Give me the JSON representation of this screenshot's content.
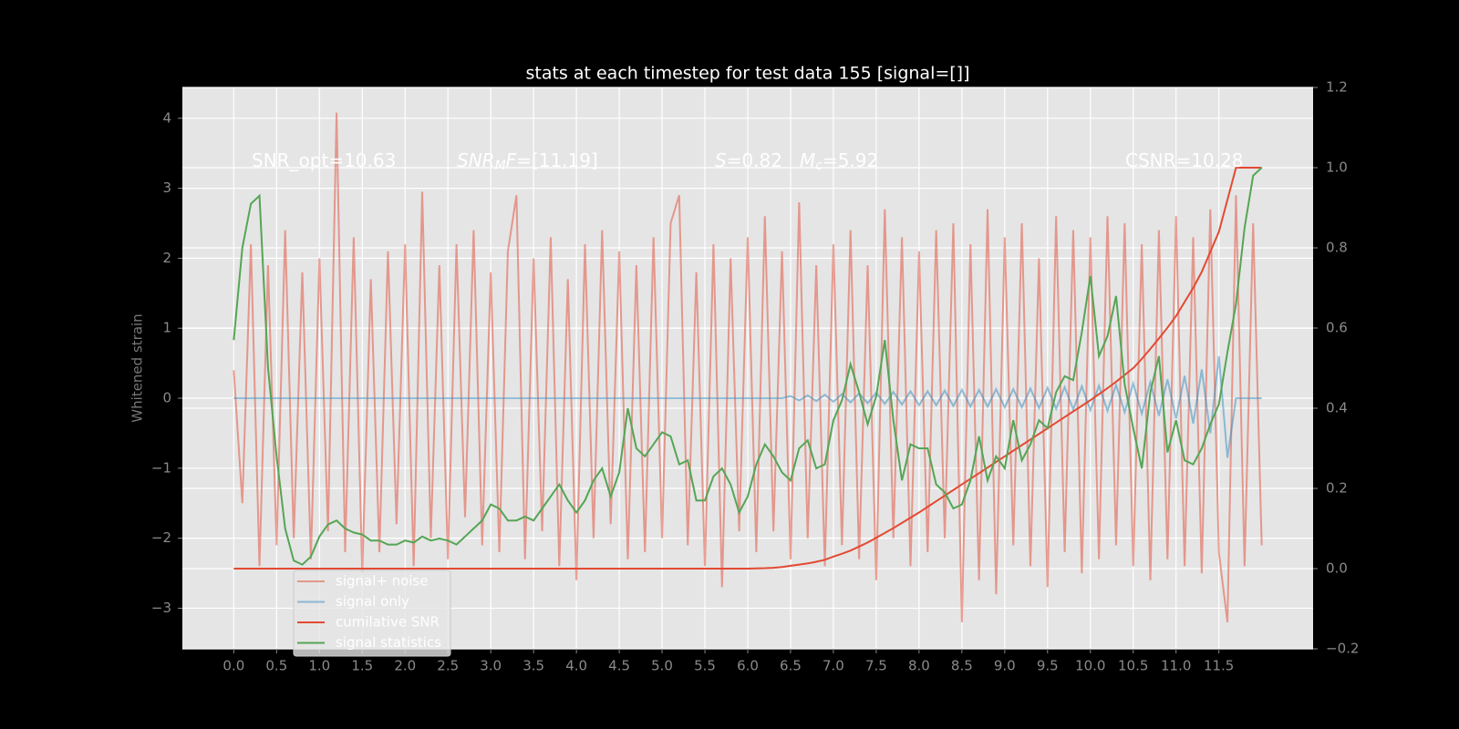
{
  "chart_data": {
    "type": "line",
    "title": "stats at each timestep for test data 155 [signal=[]]",
    "ylabel": "Whitened strain",
    "annotations": [
      [
        {
          "text": "SNR_opt=10.63"
        }
      ],
      [
        {
          "text": "SNR",
          "italic": true
        },
        {
          "text": "M",
          "italic": true,
          "sub": true
        },
        {
          "text": "F",
          "italic": true
        },
        {
          "text": "=[11.19]"
        }
      ],
      [
        {
          "text": "S",
          "italic": true
        },
        {
          "text": "=0.82"
        }
      ],
      [
        {
          "text": "M",
          "italic": true
        },
        {
          "text": "c",
          "italic": true,
          "sub": true
        },
        {
          "text": "=5.92"
        }
      ],
      [
        {
          "text": "CSNR=10.28"
        }
      ]
    ],
    "grid": true,
    "legend": "lower left",
    "xlim": [
      -0.6,
      12.6
    ],
    "xticks": [
      {
        "value": 0,
        "label": "0.0"
      },
      0.5,
      {
        "value": 1,
        "label": "1.0"
      },
      1.5,
      {
        "value": 2,
        "label": "2.0"
      },
      2.5,
      {
        "value": 3,
        "label": "3.0"
      },
      3.5,
      {
        "value": 4,
        "label": "4.0"
      },
      4.5,
      {
        "value": 5,
        "label": "5.0"
      },
      5.5,
      {
        "value": 6,
        "label": "6.0"
      },
      6.5,
      {
        "value": 7,
        "label": "7.0"
      },
      7.5,
      {
        "value": 8,
        "label": "8.0"
      },
      8.5,
      {
        "value": 9,
        "label": "9.0"
      },
      9.5,
      {
        "value": 10,
        "label": "10.0"
      },
      10.5,
      {
        "value": 11,
        "label": "11.0"
      },
      11.5
    ],
    "ylim": [
      -3.58,
      4.44
    ],
    "yticks": [
      {
        "value": -3,
        "label": "−3"
      },
      {
        "value": -2,
        "label": "−2"
      },
      {
        "value": -1,
        "label": "−1"
      },
      0,
      1,
      2,
      3,
      4
    ],
    "y2lim": [
      -0.2,
      1.2
    ],
    "y2ticks": [
      {
        "value": -0.2,
        "label": "−0.2"
      },
      {
        "value": 0,
        "label": "0.0"
      },
      0.2,
      0.4,
      0.6,
      0.8,
      {
        "value": 1,
        "label": "1.0"
      },
      1.2
    ],
    "x": [
      0,
      0.1,
      0.2,
      0.3,
      0.4,
      0.5,
      0.6,
      0.7,
      0.8,
      0.9,
      1,
      1.1,
      1.2,
      1.3,
      1.4,
      1.5,
      1.6,
      1.7,
      1.8,
      1.9,
      2,
      2.1,
      2.2,
      2.3,
      2.4,
      2.5,
      2.6,
      2.7,
      2.8,
      2.9,
      3,
      3.1,
      3.2,
      3.3,
      3.4,
      3.5,
      3.6,
      3.7,
      3.8,
      3.9,
      4,
      4.1,
      4.2,
      4.3,
      4.4,
      4.5,
      4.6,
      4.7,
      4.8,
      4.9,
      5,
      5.1,
      5.2,
      5.3,
      5.4,
      5.5,
      5.6,
      5.7,
      5.8,
      5.9,
      6,
      6.1,
      6.2,
      6.3,
      6.4,
      6.5,
      6.6,
      6.7,
      6.8,
      6.9,
      7,
      7.1,
      7.2,
      7.3,
      7.4,
      7.5,
      7.6,
      7.7,
      7.8,
      7.9,
      8,
      8.1,
      8.2,
      8.3,
      8.4,
      8.5,
      8.6,
      8.7,
      8.8,
      8.9,
      9,
      9.1,
      9.2,
      9.3,
      9.4,
      9.5,
      9.6,
      9.7,
      9.8,
      9.9,
      10,
      10.1,
      10.2,
      10.3,
      10.4,
      10.5,
      10.6,
      10.7,
      10.8,
      10.9,
      11,
      11.1,
      11.2,
      11.3,
      11.4,
      11.5,
      11.6,
      11.7,
      11.8,
      11.9,
      12
    ],
    "series": [
      {
        "name": "signal+ noise",
        "color": "#e24a33",
        "alpha": 0.5,
        "values": [
          0.4,
          -1.5,
          2.2,
          -2.4,
          1.9,
          -2.1,
          2.4,
          -2.0,
          1.8,
          -2.3,
          2.0,
          -1.9,
          4.08,
          -2.2,
          2.3,
          -2.5,
          1.7,
          -2.2,
          2.1,
          -1.8,
          2.2,
          -2.4,
          2.95,
          -2.0,
          1.9,
          -2.3,
          2.2,
          -1.7,
          2.4,
          -2.1,
          1.8,
          -2.2,
          2.1,
          2.9,
          -2.3,
          2.0,
          -1.9,
          2.3,
          -2.4,
          1.7,
          -2.6,
          2.2,
          -2.0,
          2.4,
          -1.8,
          2.1,
          -2.3,
          1.9,
          -2.2,
          2.3,
          -2.0,
          2.5,
          2.9,
          -2.1,
          1.8,
          -2.4,
          2.2,
          -2.7,
          2.0,
          -1.9,
          2.3,
          -2.2,
          2.6,
          -1.9,
          2.1,
          -2.3,
          2.8,
          -2.0,
          1.9,
          -2.4,
          2.2,
          -2.1,
          2.4,
          -2.3,
          1.9,
          -2.6,
          2.7,
          -2.0,
          2.3,
          -2.4,
          2.1,
          -2.2,
          2.4,
          -2.0,
          2.5,
          -3.2,
          2.2,
          -2.6,
          2.7,
          -2.8,
          2.3,
          -2.1,
          2.5,
          -2.4,
          2.0,
          -2.7,
          2.6,
          -2.2,
          2.4,
          -2.5,
          2.3,
          -2.3,
          2.6,
          -2.1,
          2.5,
          -2.4,
          2.2,
          -2.6,
          2.4,
          -2.3,
          2.6,
          -2.4,
          2.3,
          -2.5,
          2.7,
          -2.2,
          -3.2,
          2.9,
          -2.4,
          2.5,
          -2.1
        ]
      },
      {
        "name": "signal only",
        "color": "#348abd",
        "alpha": 0.5,
        "values": [
          0,
          0,
          0,
          0,
          0,
          0,
          0,
          0,
          0,
          0,
          0,
          0,
          0,
          0,
          0,
          0,
          0,
          0,
          0,
          0,
          0,
          0,
          0,
          0,
          0,
          0,
          0,
          0,
          0,
          0,
          0,
          0,
          0,
          0,
          0,
          0,
          0,
          0,
          0,
          0,
          0,
          0,
          0,
          0,
          0,
          0,
          0,
          0,
          0,
          0,
          0,
          0,
          0,
          0,
          0,
          0,
          0,
          0,
          0,
          0,
          0,
          0,
          0,
          0,
          0,
          0.03,
          -0.03,
          0.04,
          -0.04,
          0.05,
          -0.05,
          0.06,
          -0.06,
          0.07,
          -0.07,
          0.08,
          -0.08,
          0.09,
          -0.09,
          0.1,
          -0.1,
          0.1,
          -0.1,
          0.11,
          -0.11,
          0.12,
          -0.12,
          0.12,
          -0.12,
          0.13,
          -0.13,
          0.13,
          -0.13,
          0.14,
          -0.14,
          0.15,
          -0.15,
          0.16,
          -0.16,
          0.17,
          -0.17,
          0.18,
          -0.18,
          0.19,
          -0.2,
          0.21,
          -0.22,
          0.23,
          -0.25,
          0.27,
          -0.29,
          0.32,
          -0.36,
          0.41,
          -0.5,
          0.6,
          -0.85,
          0,
          0,
          0,
          0
        ]
      },
      {
        "name": "cumilative SNR",
        "color": "#e24a33",
        "axis": "y2",
        "values": [
          0,
          0,
          0,
          0,
          0,
          0,
          0,
          0,
          0,
          0,
          0,
          0,
          0,
          0,
          0,
          0,
          0,
          0,
          0,
          0,
          0,
          0,
          0,
          0,
          0,
          0,
          0,
          0,
          0,
          0,
          0,
          0,
          0,
          0,
          0,
          0,
          0,
          0,
          0,
          0,
          0,
          0,
          0,
          0,
          0,
          0,
          0,
          0,
          0,
          0,
          0,
          0,
          0,
          0,
          0,
          0,
          0,
          0,
          0,
          0,
          0,
          0.0005,
          0.001,
          0.002,
          0.004,
          0.007,
          0.01,
          0.013,
          0.017,
          0.022,
          0.03,
          0.037,
          0.045,
          0.055,
          0.065,
          0.077,
          0.089,
          0.101,
          0.114,
          0.127,
          0.14,
          0.154,
          0.168,
          0.182,
          0.196,
          0.21,
          0.224,
          0.238,
          0.252,
          0.266,
          0.28,
          0.294,
          0.308,
          0.322,
          0.336,
          0.35,
          0.364,
          0.378,
          0.392,
          0.406,
          0.42,
          0.435,
          0.45,
          0.466,
          0.483,
          0.5,
          0.523,
          0.548,
          0.574,
          0.601,
          0.63,
          0.665,
          0.7,
          0.74,
          0.79,
          0.84,
          0.92,
          1.0,
          1.0,
          1.0,
          1.0
        ]
      },
      {
        "name": "signal statistics",
        "color": "#55a555",
        "axis": "y2",
        "values": [
          0.57,
          0.8,
          0.91,
          0.93,
          0.5,
          0.28,
          0.1,
          0.02,
          0.01,
          0.03,
          0.08,
          0.11,
          0.12,
          0.1,
          0.09,
          0.085,
          0.07,
          0.07,
          0.06,
          0.06,
          0.07,
          0.065,
          0.08,
          0.07,
          0.075,
          0.07,
          0.06,
          0.08,
          0.1,
          0.12,
          0.16,
          0.15,
          0.12,
          0.12,
          0.13,
          0.12,
          0.15,
          0.18,
          0.21,
          0.17,
          0.14,
          0.17,
          0.22,
          0.25,
          0.18,
          0.24,
          0.4,
          0.3,
          0.28,
          0.31,
          0.34,
          0.33,
          0.26,
          0.27,
          0.17,
          0.17,
          0.23,
          0.25,
          0.21,
          0.14,
          0.18,
          0.26,
          0.31,
          0.28,
          0.24,
          0.22,
          0.3,
          0.32,
          0.25,
          0.26,
          0.37,
          0.42,
          0.51,
          0.44,
          0.36,
          0.43,
          0.57,
          0.37,
          0.22,
          0.31,
          0.3,
          0.3,
          0.21,
          0.19,
          0.15,
          0.16,
          0.22,
          0.33,
          0.22,
          0.28,
          0.25,
          0.37,
          0.27,
          0.31,
          0.37,
          0.35,
          0.44,
          0.48,
          0.47,
          0.59,
          0.73,
          0.53,
          0.58,
          0.68,
          0.46,
          0.35,
          0.25,
          0.44,
          0.53,
          0.29,
          0.37,
          0.27,
          0.26,
          0.3,
          0.36,
          0.41,
          0.54,
          0.66,
          0.85,
          0.98,
          1.0
        ]
      }
    ]
  }
}
